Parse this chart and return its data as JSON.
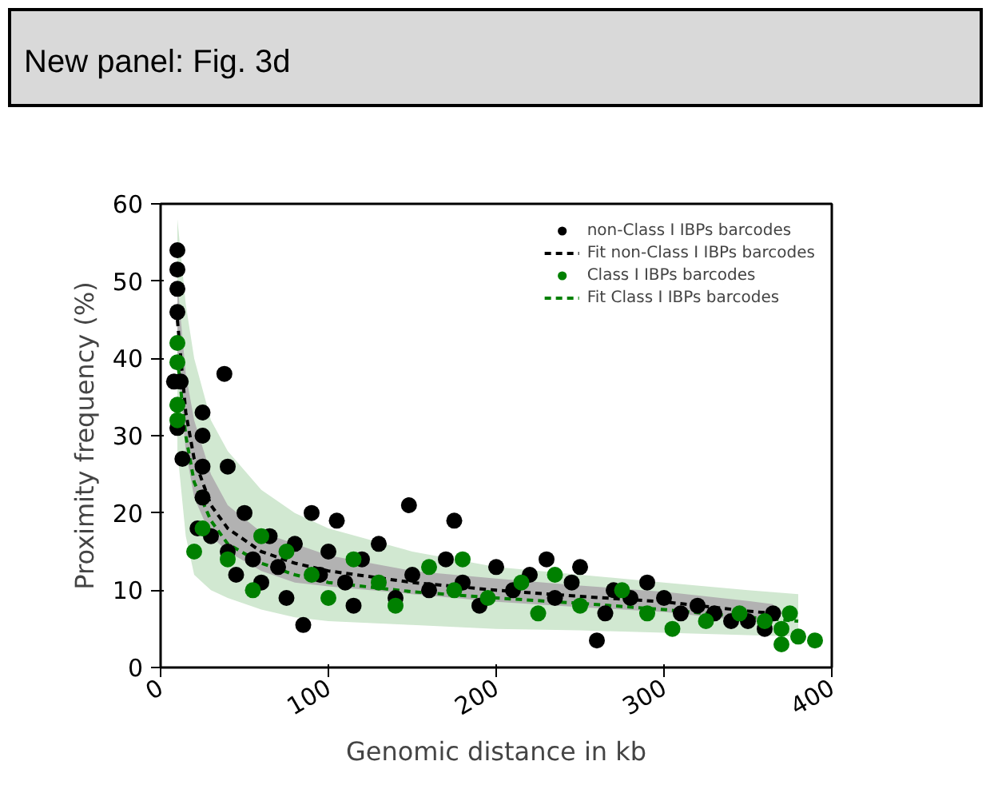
{
  "chart_data": {
    "type": "scatter",
    "title": "New panel: Fig. 3d",
    "xlabel": "Genomic distance in kb",
    "ylabel": "Proximity frequency (%)",
    "xlim": [
      0,
      400
    ],
    "xticks": [
      0,
      100,
      200,
      300,
      400
    ],
    "ylim": [
      0,
      60
    ],
    "yticks": [
      0,
      10,
      20,
      30,
      40,
      50,
      60
    ],
    "legend": "top right",
    "marker": "circle",
    "series": [
      {
        "name": "Fit Class I IBPs barcodes",
        "type": "line",
        "marker": "none",
        "line_style": "dashed",
        "color": "#008000",
        "x": [
          10,
          15,
          20,
          30,
          40,
          60,
          80,
          100,
          150,
          200,
          250,
          300,
          350,
          380
        ],
        "values": [
          40,
          30,
          24,
          19,
          16,
          13.5,
          12,
          11,
          9.8,
          9,
          8.3,
          7.5,
          6.5,
          6
        ],
        "lower": [
          28,
          17,
          12,
          10,
          9,
          7.5,
          6.5,
          6,
          5.5,
          5,
          4.8,
          4.5,
          4.2,
          4
        ],
        "upper": [
          58,
          47,
          40,
          32,
          28,
          23,
          20,
          18,
          15,
          13,
          12,
          11,
          10,
          9.5
        ]
      },
      {
        "name": "Fit non-Class I IBPs barcodes",
        "type": "line",
        "marker": "none",
        "line_style": "dashed",
        "color": "#000000",
        "x": [
          10,
          15,
          20,
          30,
          40,
          60,
          80,
          100,
          150,
          200,
          250,
          300,
          350,
          365
        ],
        "values": [
          45,
          33,
          27,
          21,
          18,
          15,
          13.5,
          12.5,
          11,
          10,
          9.2,
          8.5,
          7.3,
          7
        ],
        "lower": [
          40,
          28,
          22,
          17,
          15,
          12.5,
          11,
          10.5,
          9.5,
          8.5,
          7.8,
          7.2,
          6,
          5.8
        ],
        "upper": [
          50,
          38,
          32,
          25,
          21,
          17.5,
          16,
          14.5,
          12.5,
          11.5,
          10.6,
          9.8,
          8.6,
          8.2
        ]
      },
      {
        "name": "non-Class I IBPs barcodes",
        "color": "#000000",
        "x": [
          10,
          10,
          10,
          10,
          8,
          12,
          10,
          13,
          25,
          25,
          25,
          25,
          22,
          30,
          38,
          40,
          40,
          45,
          50,
          55,
          60,
          65,
          70,
          75,
          80,
          85,
          90,
          95,
          100,
          105,
          110,
          115,
          120,
          130,
          140,
          148,
          150,
          160,
          170,
          175,
          180,
          190,
          200,
          210,
          220,
          230,
          235,
          245,
          250,
          260,
          265,
          270,
          280,
          290,
          300,
          310,
          320,
          330,
          340,
          350,
          360,
          365
        ],
        "values": [
          54,
          51.5,
          49,
          46,
          37,
          37,
          31,
          27,
          33,
          30,
          26,
          22,
          18,
          17,
          38,
          26,
          15,
          12,
          20,
          14,
          11,
          17,
          13,
          9,
          16,
          5.5,
          20,
          12,
          15,
          19,
          11,
          8,
          14,
          16,
          9,
          21,
          12,
          10,
          14,
          19,
          11,
          8,
          13,
          10,
          12,
          14,
          9,
          11,
          13,
          3.5,
          7,
          10,
          9,
          11,
          9,
          7,
          8,
          7,
          6,
          6,
          5,
          7
        ]
      },
      {
        "name": "Class I IBPs barcodes",
        "color": "#008000",
        "x": [
          10,
          10,
          10,
          10,
          20,
          25,
          40,
          55,
          60,
          75,
          90,
          100,
          115,
          130,
          140,
          160,
          175,
          180,
          195,
          215,
          225,
          235,
          250,
          275,
          290,
          305,
          325,
          345,
          360,
          370,
          370,
          375,
          380,
          390
        ],
        "values": [
          42,
          39.5,
          34,
          32,
          15,
          18,
          14,
          10,
          17,
          15,
          12,
          9,
          14,
          11,
          8,
          13,
          10,
          14,
          9,
          11,
          7,
          12,
          8,
          10,
          7,
          5,
          6,
          7,
          6,
          3,
          5,
          7,
          4,
          3.5
        ]
      }
    ]
  }
}
